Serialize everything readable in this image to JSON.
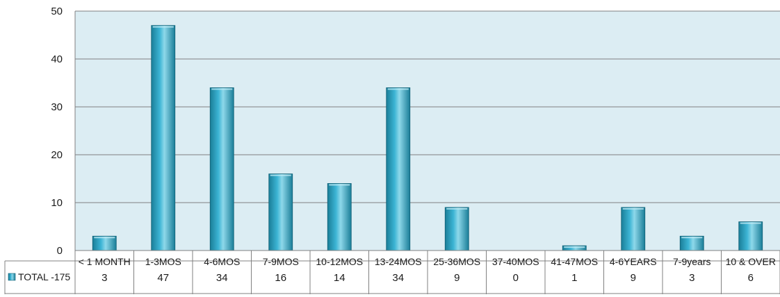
{
  "chart_data": {
    "type": "bar",
    "title": "",
    "xlabel": "",
    "ylabel": "",
    "ylim": [
      0,
      50
    ],
    "yticks": [
      0,
      10,
      20,
      30,
      40,
      50
    ],
    "grid": true,
    "legend_position": "data-table-left",
    "categories": [
      "< 1 MONTH",
      "1-3MOS",
      "4-6MOS",
      "7-9MOS",
      "10-12MOS",
      "13-24MOS",
      "25-36MOS",
      "37-40MOS",
      "41-47MOS",
      "4-6YEARS",
      "7-9years",
      "10 & OVER"
    ],
    "series": [
      {
        "name": "TOTAL -175",
        "values": [
          3,
          47,
          34,
          16,
          14,
          34,
          9,
          0,
          1,
          9,
          3,
          6
        ]
      }
    ],
    "colors": {
      "plot_background": "#dcedf3",
      "bar_dark": "#1a7e98",
      "bar_mid": "#3cb4d4",
      "bar_light": "#8ed8ea",
      "grid": "#808080",
      "table_border": "#808080"
    }
  }
}
